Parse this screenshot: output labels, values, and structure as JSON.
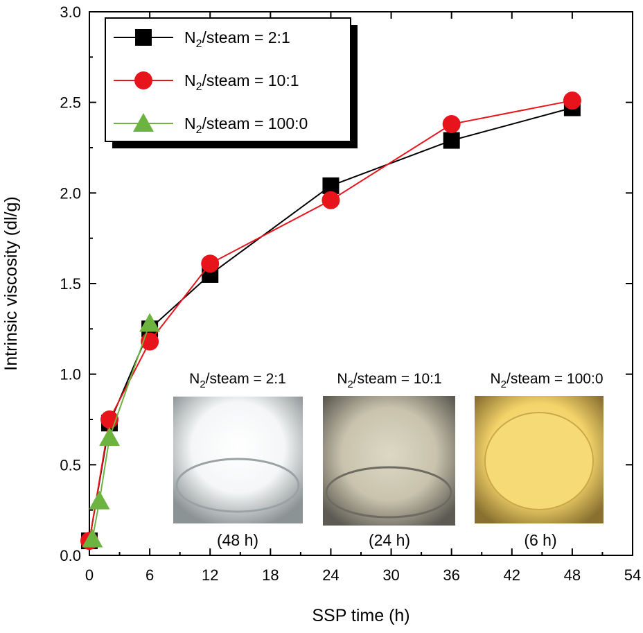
{
  "chart_data": {
    "type": "line",
    "xlabel": "SSP time (h)",
    "ylabel": "Intrinsic viscosity (dl/g)",
    "xlim": [
      0,
      54
    ],
    "ylim": [
      0.0,
      3.0
    ],
    "xticks": [
      0,
      6,
      12,
      18,
      24,
      30,
      36,
      42,
      48,
      54
    ],
    "yticks": [
      0.0,
      0.5,
      1.0,
      1.5,
      2.0,
      2.5,
      3.0
    ],
    "xtick_labels": [
      "0",
      "6",
      "12",
      "18",
      "24",
      "30",
      "36",
      "42",
      "48",
      "54"
    ],
    "ytick_labels": [
      "0.0",
      "0.5",
      "1.0",
      "1.5",
      "2.0",
      "2.5",
      "3.0"
    ],
    "grid": false,
    "legend_position": "top-left",
    "series": [
      {
        "name_main": "N",
        "name_sub": "2",
        "name_rest": "/steam = 2:1",
        "marker": "square",
        "color": "#000000",
        "marker_color": "#000000",
        "x": [
          0,
          2,
          6,
          12,
          24,
          36,
          48
        ],
        "y": [
          0.08,
          0.73,
          1.25,
          1.55,
          2.04,
          2.29,
          2.47
        ]
      },
      {
        "name_main": "N",
        "name_sub": "2",
        "name_rest": "/steam = 10:1",
        "marker": "circle",
        "color": "#e8141c",
        "marker_color": "#e8141c",
        "x": [
          0,
          2,
          6,
          12,
          24,
          36,
          48
        ],
        "y": [
          0.08,
          0.75,
          1.18,
          1.61,
          1.96,
          2.38,
          2.51
        ]
      },
      {
        "name_main": "N",
        "name_sub": "2",
        "name_rest": "/steam = 100:0",
        "marker": "triangle",
        "color": "#6db33f",
        "marker_color": "#6db33f",
        "x": [
          0.3,
          1,
          2,
          6
        ],
        "y": [
          0.09,
          0.3,
          0.65,
          1.28
        ]
      }
    ],
    "inset_photos": [
      {
        "caption_main": "N",
        "caption_sub": "2",
        "caption_rest": "/steam = 2:1",
        "time": "(48 h)",
        "color_a": "#f4f6f7",
        "color_b": "#8c9394"
      },
      {
        "caption_main": "N",
        "caption_sub": "2",
        "caption_rest": "/steam = 10:1",
        "time": "(24 h)",
        "color_a": "#c9c3ad",
        "color_b": "#5c5a52"
      },
      {
        "caption_main": "N",
        "caption_sub": "2",
        "caption_rest": "/steam = 100:0",
        "time": "(6 h)",
        "color_a": "#f3d46a",
        "color_b": "#8a7030"
      }
    ]
  }
}
